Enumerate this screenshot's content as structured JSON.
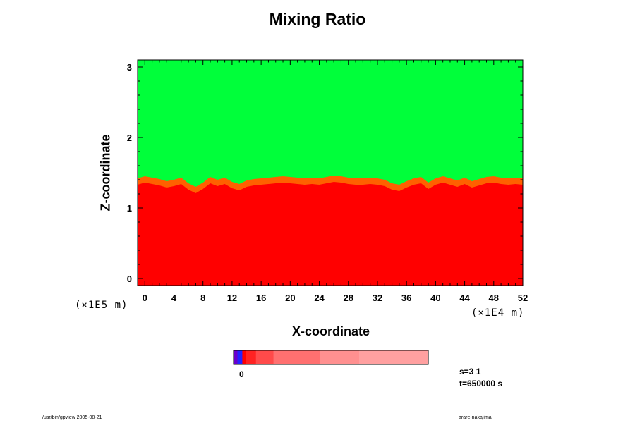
{
  "chart_data": {
    "type": "heatmap",
    "title": "Mixing Ratio",
    "xlabel": "X-coordinate",
    "ylabel": "Z-coordinate",
    "x_scale_label": "(×1E4 m)",
    "y_scale_label": "(×1E5 m)",
    "xlim": [
      -1,
      52
    ],
    "ylim": [
      -0.1,
      3.1
    ],
    "x_ticks": [
      0,
      4,
      8,
      12,
      16,
      20,
      24,
      28,
      32,
      36,
      40,
      44,
      48,
      52
    ],
    "y_ticks": [
      0,
      1,
      2,
      3
    ],
    "y_minor_step": 0.2,
    "x_minor_step": 1,
    "interface_height": [
      1.42,
      1.45,
      1.43,
      1.41,
      1.38,
      1.4,
      1.43,
      1.35,
      1.3,
      1.36,
      1.44,
      1.4,
      1.43,
      1.37,
      1.34,
      1.39,
      1.41,
      1.42,
      1.43,
      1.44,
      1.45,
      1.44,
      1.43,
      1.42,
      1.43,
      1.42,
      1.44,
      1.46,
      1.45,
      1.43,
      1.42,
      1.42,
      1.43,
      1.42,
      1.4,
      1.35,
      1.33,
      1.38,
      1.42,
      1.44,
      1.36,
      1.42,
      1.45,
      1.42,
      1.39,
      1.43,
      1.38,
      1.41,
      1.44,
      1.45,
      1.43,
      1.42,
      1.43,
      1.42
    ],
    "upper_color": "#00ff3a",
    "lower_color": "#ff0000",
    "transition_colors": [
      "#ffff00",
      "#ffb000",
      "#ff6000"
    ],
    "colorbar": {
      "label": "0",
      "colors": [
        "#6a00cc",
        "#2222ff",
        "#ff0000",
        "#ff2222",
        "#ff4a4a",
        "#ff7070",
        "#ff9090",
        "#ffa0a0"
      ],
      "fractions": [
        0.02,
        0.025,
        0.02,
        0.05,
        0.09,
        0.24,
        0.2,
        0.355
      ]
    }
  },
  "info": {
    "s_label": "s=3 1",
    "t_label": "t=650000 s"
  },
  "footer": {
    "left": "/usr/bin/gpview 2005-08-21",
    "right": "arare-nakajima"
  }
}
